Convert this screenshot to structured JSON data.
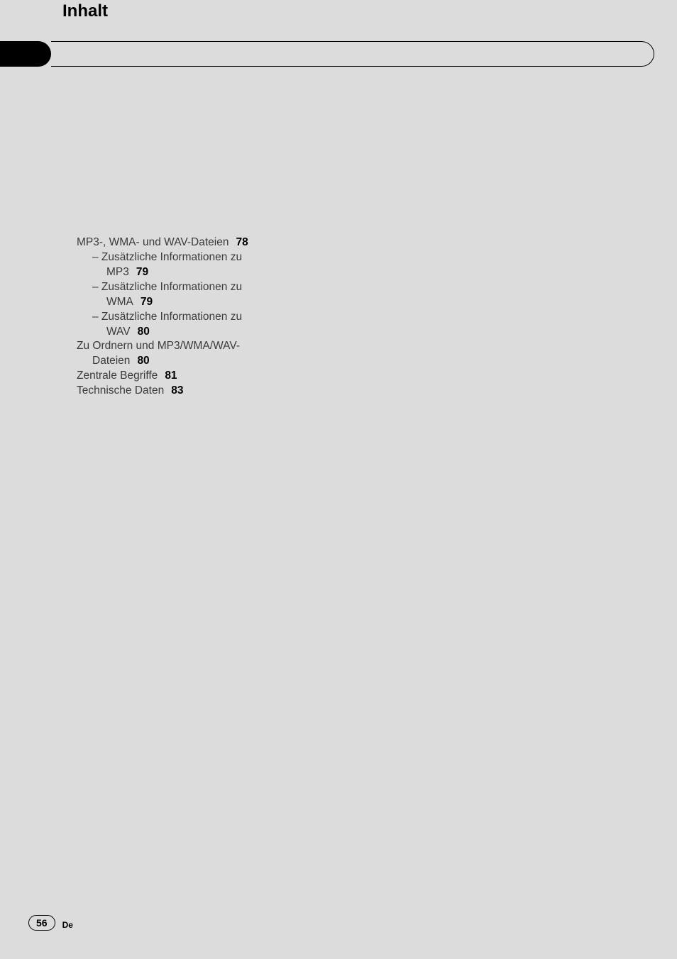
{
  "header": {
    "title": "Inhalt"
  },
  "toc": {
    "entries": [
      {
        "text": "MP3-, WMA- und WAV-Dateien",
        "page": "78",
        "indent": 0
      },
      {
        "text": "–  Zusätzliche Informationen zu",
        "indent": 1,
        "sub": true
      },
      {
        "text": "MP3",
        "page": "79",
        "indent": 2,
        "cont": true
      },
      {
        "text": "–  Zusätzliche Informationen zu",
        "indent": 1,
        "sub": true
      },
      {
        "text": "WMA",
        "page": "79",
        "indent": 2,
        "cont": true
      },
      {
        "text": "–  Zusätzliche Informationen zu",
        "indent": 1,
        "sub": true
      },
      {
        "text": "WAV",
        "page": "80",
        "indent": 2,
        "cont": true
      },
      {
        "text": "Zu Ordnern und MP3/WMA/WAV-",
        "indent": 0
      },
      {
        "text": "Dateien",
        "page": "80",
        "indent": 1,
        "cont": true
      },
      {
        "text": "Zentrale Begriffe",
        "page": "81",
        "indent": 0
      },
      {
        "text": "Technische Daten",
        "page": "83",
        "indent": 0
      }
    ]
  },
  "footer": {
    "page_number": "56",
    "language": "De"
  },
  "colors": {
    "page_bg": "#dcdcdc",
    "text": "#3a3a3a",
    "bold": "#000000"
  }
}
